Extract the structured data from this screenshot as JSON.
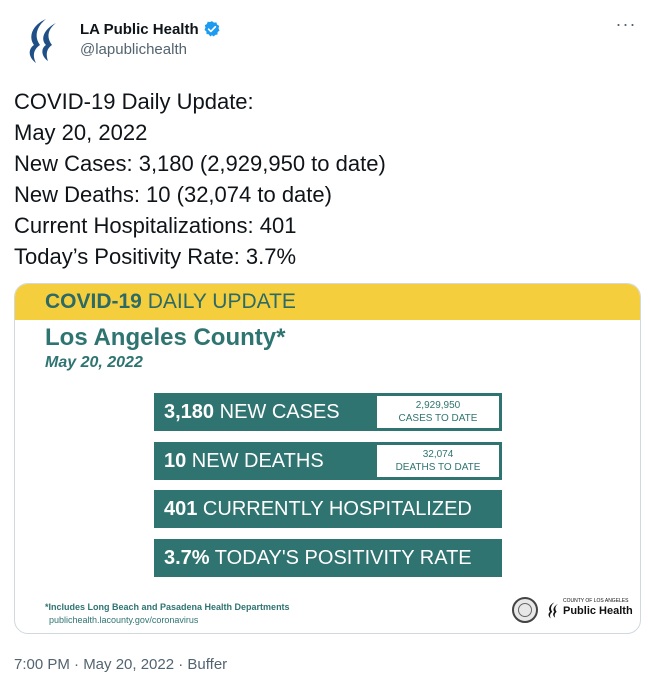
{
  "author": {
    "display_name": "LA Public Health",
    "handle": "@lapublichealth",
    "more_label": "···"
  },
  "tweet": {
    "lines": [
      "COVID-19 Daily Update:",
      "May 20, 2022",
      "New Cases: 3,180 (2,929,950 to date)",
      "New Deaths: 10 (32,074 to date)",
      "Current Hospitalizations: 401",
      "Today’s Positivity Rate: 3.7%"
    ],
    "timestamp": "7:00 PM · May 20, 2022 · Buffer"
  },
  "card": {
    "banner_bold": "COVID-19",
    "banner_rest": " DAILY UPDATE",
    "county": "Los Angeles County*",
    "date": "May 20, 2022",
    "stats": [
      {
        "value": "3,180",
        "label": " NEW CASES",
        "todate_value": "2,929,950",
        "todate_label": "CASES TO DATE"
      },
      {
        "value": "10",
        "label": " NEW DEATHS",
        "todate_value": "32,074",
        "todate_label": "DEATHS TO DATE"
      },
      {
        "value": "401",
        "label": " CURRENTLY HOSPITALIZED"
      },
      {
        "value": "3.7%",
        "label": " TODAY'S POSITIVITY RATE"
      }
    ],
    "footnote": "*Includes Long Beach and Pasadena Health Departments",
    "url": "publichealth.lacounty.gov/coronavirus",
    "logo_small": "COUNTY OF LOS ANGELES",
    "logo_big": "Public Health"
  },
  "colors": {
    "teal": "#2f7470",
    "banner_yellow": "#f5ce3e",
    "verified_blue": "#1d9bf0"
  },
  "icons": [
    "la-public-health-logo-icon",
    "verified-badge-icon",
    "more-options-icon",
    "county-seal-icon"
  ]
}
